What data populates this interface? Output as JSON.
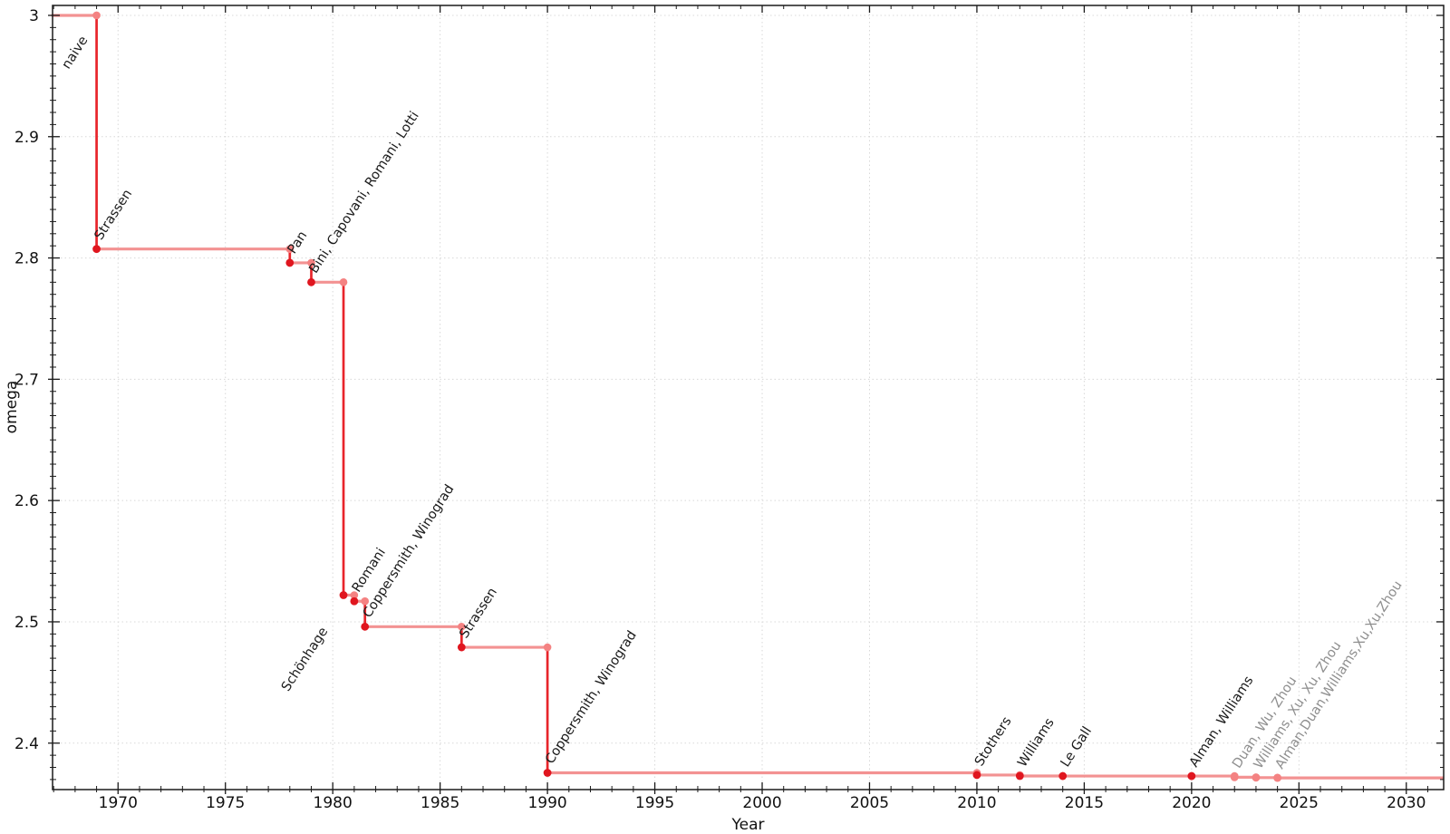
{
  "chart_data": {
    "type": "line",
    "subtype": "step-post",
    "title": "",
    "xlabel": "Year",
    "ylabel": "omega",
    "xlim": [
      1966.95,
      2031.74
    ],
    "ylim": [
      2.3617,
      3.0082
    ],
    "x_major_ticks": [
      1970,
      1975,
      1980,
      1985,
      1990,
      1995,
      2000,
      2005,
      2010,
      2015,
      2020,
      2025,
      2030
    ],
    "y_major_ticks": [
      3,
      2.9,
      2.8,
      2.7,
      2.6,
      2.5,
      2.4
    ],
    "x_minor_step": 1,
    "y_minor_step": 0.01,
    "grid": "dotted",
    "legend": "none",
    "label_rotation_deg": -57,
    "initial": {
      "label": "naive",
      "omega": 3.0,
      "label_anchor_year": 1969,
      "label_offset": [
        -31,
        60
      ]
    },
    "points": [
      {
        "label": "Strassen",
        "year": 1969,
        "omega": 2.8074
      },
      {
        "label": "Pan",
        "year": 1978,
        "omega": 2.796
      },
      {
        "label": "Bini, Capovani, Romani, Lotti",
        "year": 1979,
        "omega": 2.78
      },
      {
        "label": "Schönhage",
        "year": 1980.5,
        "omega": 2.522,
        "label_offset": [
          -61,
          107
        ]
      },
      {
        "label": "Romani",
        "year": 1981,
        "omega": 2.517
      },
      {
        "label": "Coppersmith, Winograd",
        "year": 1981.5,
        "omega": 2.496
      },
      {
        "label": "Strassen",
        "year": 1986,
        "omega": 2.479
      },
      {
        "label": "Coppersmith, Winograd",
        "year": 1990,
        "omega": 2.3755
      },
      {
        "label": "Stothers",
        "year": 2010,
        "omega": 2.3737
      },
      {
        "label": "Williams",
        "year": 2012,
        "omega": 2.3729
      },
      {
        "label": "Le Gall",
        "year": 2014,
        "omega": 2.37287
      },
      {
        "label": "Alman, Williams",
        "year": 2020,
        "omega": 2.37286
      },
      {
        "label": "Duan, Wu, Zhou",
        "year": 2022,
        "omega": 2.37188,
        "recent": true
      },
      {
        "label": "Williams, Xu, Xu, Zhou",
        "year": 2023,
        "omega": 2.371552,
        "recent": true
      },
      {
        "label": "Alman,Duan,Williams,Xu,Xu,Zhou",
        "year": 2024,
        "omega": 2.371339,
        "recent": true
      }
    ],
    "colors": {
      "step_line": "#f39292",
      "drop_line": "#e8252b",
      "corner_marker": "#f48282",
      "value_marker": "#e0161f",
      "recent_marker": "#f48282",
      "label": "#1b1b1b",
      "recent_label": "#8f8f8f",
      "grid": "#d8d8d8",
      "axis": "#1a1a1a"
    }
  }
}
